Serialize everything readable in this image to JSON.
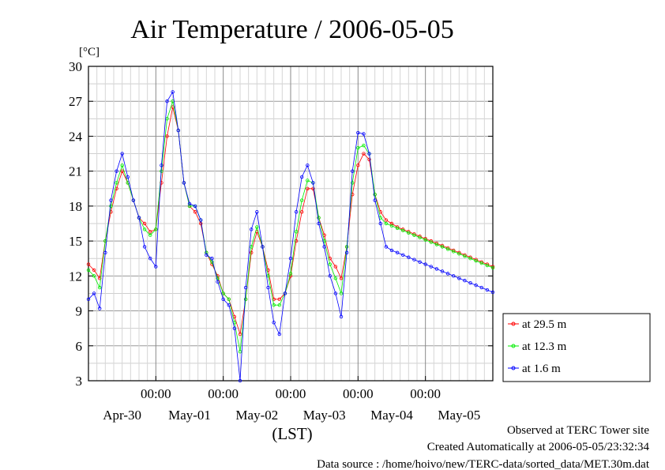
{
  "chart_data": {
    "type": "line",
    "title": "Air Temperature / 2006-05-05",
    "ylabel": "[°C]",
    "xlabel": "(LST)",
    "ylim": [
      3,
      30
    ],
    "yticks": [
      "30",
      "27",
      "24",
      "21",
      "18",
      "15",
      "12",
      "9",
      "6",
      "3"
    ],
    "xlim_hours": [
      0,
      144
    ],
    "xtick_time_labels": [
      "00:00",
      "00:00",
      "00:00",
      "00:00",
      "00:00"
    ],
    "xtick_date_labels": [
      "Apr-30",
      "May-01",
      "May-02",
      "May-03",
      "May-04",
      "May-05"
    ],
    "grid": true,
    "legend_position": "right-bottom",
    "series": [
      {
        "name": "at 29.5 m",
        "color": "#ff0000",
        "x": [
          0,
          2,
          4,
          6,
          8,
          10,
          12,
          14,
          16,
          18,
          20,
          22,
          24,
          26,
          28,
          30,
          32,
          34,
          36,
          38,
          40,
          42,
          44,
          46,
          48,
          50,
          52,
          54,
          56,
          58,
          60,
          62,
          64,
          66,
          68,
          70,
          72,
          74,
          76,
          78,
          80,
          82,
          84,
          86,
          88,
          90,
          92,
          94,
          96,
          98,
          100,
          102,
          104,
          106,
          108,
          110,
          112,
          114,
          116,
          118,
          120,
          122,
          124,
          126,
          128,
          130,
          132,
          134,
          136,
          138,
          140,
          142,
          144
        ],
        "y": [
          13.0,
          12.5,
          11.8,
          15.0,
          17.5,
          19.5,
          21.0,
          20.0,
          18.5,
          17.0,
          16.5,
          15.8,
          16.0,
          20.0,
          24.0,
          26.5,
          24.5,
          20.0,
          18.0,
          17.5,
          16.5,
          14.0,
          13.0,
          12.0,
          10.5,
          10.0,
          8.5,
          7.0,
          10.0,
          14.0,
          15.8,
          14.5,
          12.5,
          10.0,
          10.0,
          10.5,
          12.0,
          15.0,
          17.5,
          19.5,
          19.5,
          17.0,
          15.5,
          13.5,
          12.8,
          11.8,
          14.5,
          19.0,
          21.5,
          22.5,
          22.0,
          19.0,
          17.5,
          16.8,
          16.5,
          16.2,
          16.0,
          15.8,
          15.6,
          15.4,
          15.2,
          15.0,
          14.8,
          14.6,
          14.4,
          14.2,
          14.0,
          13.8,
          13.6,
          13.4,
          13.2,
          13.0,
          12.8
        ]
      },
      {
        "name": "at 12.3 m",
        "color": "#00ee00",
        "x": [
          0,
          2,
          4,
          6,
          8,
          10,
          12,
          14,
          16,
          18,
          20,
          22,
          24,
          26,
          28,
          30,
          32,
          34,
          36,
          38,
          40,
          42,
          44,
          46,
          48,
          50,
          52,
          54,
          56,
          58,
          60,
          62,
          64,
          66,
          68,
          70,
          72,
          74,
          76,
          78,
          80,
          82,
          84,
          86,
          88,
          90,
          92,
          94,
          96,
          98,
          100,
          102,
          104,
          106,
          108,
          110,
          112,
          114,
          116,
          118,
          120,
          122,
          124,
          126,
          128,
          130,
          132,
          134,
          136,
          138,
          140,
          142,
          144
        ],
        "y": [
          12.5,
          12.0,
          11.0,
          15.0,
          18.0,
          20.0,
          21.5,
          20.0,
          18.5,
          17.0,
          16.0,
          15.5,
          16.0,
          21.0,
          25.5,
          27.0,
          24.5,
          20.0,
          18.0,
          18.0,
          16.8,
          14.0,
          13.2,
          11.8,
          10.5,
          10.0,
          8.0,
          5.5,
          10.0,
          14.5,
          16.2,
          14.5,
          12.0,
          9.5,
          9.5,
          10.5,
          12.2,
          15.8,
          18.5,
          20.2,
          20.0,
          17.0,
          15.0,
          13.0,
          11.8,
          10.5,
          14.5,
          20.0,
          23.0,
          23.2,
          22.5,
          19.0,
          17.0,
          16.5,
          16.3,
          16.1,
          15.9,
          15.7,
          15.5,
          15.3,
          15.1,
          14.9,
          14.7,
          14.5,
          14.3,
          14.1,
          13.9,
          13.7,
          13.5,
          13.3,
          13.1,
          12.9,
          12.7
        ]
      },
      {
        "name": "at 1.6 m",
        "color": "#0000ff",
        "x": [
          0,
          2,
          4,
          6,
          8,
          10,
          12,
          14,
          16,
          18,
          20,
          22,
          24,
          26,
          28,
          30,
          32,
          34,
          36,
          38,
          40,
          42,
          44,
          46,
          48,
          50,
          52,
          54,
          56,
          58,
          60,
          62,
          64,
          66,
          68,
          70,
          72,
          74,
          76,
          78,
          80,
          82,
          84,
          86,
          88,
          90,
          92,
          94,
          96,
          98,
          100,
          102,
          104,
          106,
          108,
          110,
          112,
          114,
          116,
          118,
          120,
          122,
          124,
          126,
          128,
          130,
          132,
          134,
          136,
          138,
          140,
          142,
          144
        ],
        "y": [
          10.0,
          10.5,
          9.2,
          14.0,
          18.5,
          21.0,
          22.5,
          20.5,
          18.5,
          17.0,
          14.5,
          13.5,
          12.8,
          21.5,
          27.0,
          27.8,
          24.5,
          20.0,
          18.2,
          18.0,
          16.8,
          13.8,
          13.5,
          11.5,
          10.0,
          9.5,
          7.5,
          3.0,
          11.0,
          16.0,
          17.5,
          14.5,
          11.0,
          8.0,
          7.0,
          10.5,
          13.5,
          17.5,
          20.5,
          21.5,
          20.0,
          16.5,
          14.5,
          12.0,
          10.5,
          8.5,
          14.0,
          21.0,
          24.3,
          24.2,
          22.5,
          18.5,
          16.5,
          14.5,
          14.2,
          14.0,
          13.8,
          13.6,
          13.4,
          13.2,
          13.0,
          12.8,
          12.6,
          12.4,
          12.2,
          12.0,
          11.8,
          11.6,
          11.4,
          11.2,
          11.0,
          10.8,
          10.6
        ]
      }
    ]
  },
  "footer": {
    "line1": "Observed at TERC Tower site",
    "line2": "Created Automatically at 2006-05-05/23:32:34",
    "line3": "Data source : /home/hoivo/new/TERC-data/sorted_data/MET.30m.dat"
  }
}
